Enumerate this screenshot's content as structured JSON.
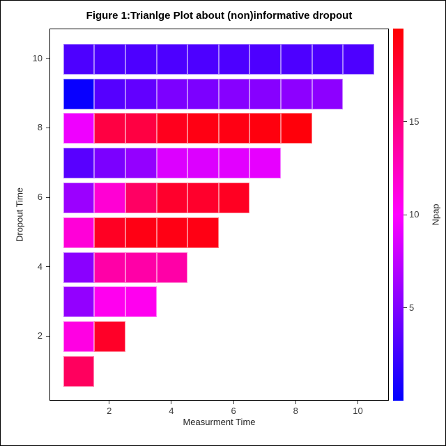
{
  "window": {
    "background": "#FFFFFF",
    "border_color": "#000000"
  },
  "chart_data": {
    "type": "heatmap",
    "title": "Figure 1:Trianlge Plot about (non)informative dropout",
    "xlabel": "Measurment Time",
    "ylabel": "Dropout Time",
    "x_ticks": [
      2,
      4,
      6,
      8,
      10
    ],
    "y_ticks": [
      2,
      4,
      6,
      8,
      10
    ],
    "xlim": [
      0.1,
      11.0
    ],
    "ylim": [
      -0.3,
      10.9
    ],
    "grid": false,
    "shape": "lower-triangle: row for dropout time d has cells at measurement times 1..d",
    "colorbar": {
      "label": "Npap",
      "min": 0,
      "max": 20,
      "ticks": [
        5,
        10,
        15
      ],
      "gradient_stops": [
        "#0000FF",
        "#FF00FF",
        "#FF0000"
      ],
      "position": "right"
    },
    "rows": [
      {
        "dropout_time": 1,
        "cells": [
          {
            "x": 1,
            "npap": 16.3,
            "color": "#FF005E"
          }
        ]
      },
      {
        "dropout_time": 2,
        "cells": [
          {
            "x": 1,
            "npap": 10.6,
            "color": "#FF00E3"
          },
          {
            "x": 2,
            "npap": 18.4,
            "color": "#FF0028"
          }
        ]
      },
      {
        "dropout_time": 3,
        "cells": [
          {
            "x": 1,
            "npap": 5.8,
            "color": "#9300FF"
          },
          {
            "x": 2,
            "npap": 10.4,
            "color": "#FF00EF"
          },
          {
            "x": 3,
            "npap": 10.4,
            "color": "#FF00EF"
          }
        ]
      },
      {
        "dropout_time": 4,
        "cells": [
          {
            "x": 1,
            "npap": 5.4,
            "color": "#8A00FF"
          },
          {
            "x": 2,
            "npap": 13.5,
            "color": "#FF00A7"
          },
          {
            "x": 3,
            "npap": 13.5,
            "color": "#FF00A7"
          },
          {
            "x": 4,
            "npap": 13.5,
            "color": "#FF00A7"
          }
        ]
      },
      {
        "dropout_time": 5,
        "cells": [
          {
            "x": 1,
            "npap": 11.0,
            "color": "#FF00D8"
          },
          {
            "x": 2,
            "npap": 18.6,
            "color": "#FF0023"
          },
          {
            "x": 3,
            "npap": 19.2,
            "color": "#FF0014"
          },
          {
            "x": 4,
            "npap": 19.2,
            "color": "#FF0014"
          },
          {
            "x": 5,
            "npap": 19.2,
            "color": "#FF0014"
          }
        ]
      },
      {
        "dropout_time": 6,
        "cells": [
          {
            "x": 1,
            "npap": 6.1,
            "color": "#9B00FF"
          },
          {
            "x": 2,
            "npap": 11.1,
            "color": "#FF00D4"
          },
          {
            "x": 3,
            "npap": 16.1,
            "color": "#FF0063"
          },
          {
            "x": 4,
            "npap": 18.3,
            "color": "#FF002C"
          },
          {
            "x": 5,
            "npap": 18.3,
            "color": "#FF002C"
          },
          {
            "x": 6,
            "npap": 18.7,
            "color": "#FF0022"
          }
        ]
      },
      {
        "dropout_time": 7,
        "cells": [
          {
            "x": 1,
            "npap": 3.5,
            "color": "#5800FF"
          },
          {
            "x": 2,
            "npap": 4.8,
            "color": "#7B00FF"
          },
          {
            "x": 3,
            "npap": 5.8,
            "color": "#9400FF"
          },
          {
            "x": 4,
            "npap": 8.6,
            "color": "#DC00FF"
          },
          {
            "x": 5,
            "npap": 8.6,
            "color": "#DC00FF"
          },
          {
            "x": 6,
            "npap": 8.9,
            "color": "#E200FF"
          },
          {
            "x": 7,
            "npap": 9.1,
            "color": "#E700FF"
          }
        ]
      },
      {
        "dropout_time": 8,
        "cells": [
          {
            "x": 1,
            "npap": 9.4,
            "color": "#EF00FF"
          },
          {
            "x": 2,
            "npap": 17.4,
            "color": "#FF0042"
          },
          {
            "x": 3,
            "npap": 17.4,
            "color": "#FF0042"
          },
          {
            "x": 4,
            "npap": 18.9,
            "color": "#FF001D"
          },
          {
            "x": 5,
            "npap": 19.3,
            "color": "#FF0013"
          },
          {
            "x": 6,
            "npap": 19.3,
            "color": "#FF0013"
          },
          {
            "x": 7,
            "npap": 19.5,
            "color": "#FF000E"
          },
          {
            "x": 8,
            "npap": 19.6,
            "color": "#FF000A"
          }
        ]
      },
      {
        "dropout_time": 9,
        "cells": [
          {
            "x": 1,
            "npap": 0.3,
            "color": "#0800FF"
          },
          {
            "x": 2,
            "npap": 3.3,
            "color": "#5500FF"
          },
          {
            "x": 3,
            "npap": 3.8,
            "color": "#6200FF"
          },
          {
            "x": 4,
            "npap": 4.9,
            "color": "#7C00FF"
          },
          {
            "x": 5,
            "npap": 4.9,
            "color": "#7C00FF"
          },
          {
            "x": 6,
            "npap": 5.3,
            "color": "#8700FF"
          },
          {
            "x": 7,
            "npap": 5.3,
            "color": "#8700FF"
          },
          {
            "x": 8,
            "npap": 5.5,
            "color": "#8D00FF"
          },
          {
            "x": 9,
            "npap": 5.5,
            "color": "#8D00FF"
          }
        ]
      },
      {
        "dropout_time": 10,
        "cells": [
          {
            "x": 1,
            "npap": 3.0,
            "color": "#4D00FF"
          },
          {
            "x": 2,
            "npap": 3.0,
            "color": "#4D00FF"
          },
          {
            "x": 3,
            "npap": 3.0,
            "color": "#4D00FF"
          },
          {
            "x": 4,
            "npap": 3.0,
            "color": "#4D00FF"
          },
          {
            "x": 5,
            "npap": 3.0,
            "color": "#4D00FF"
          },
          {
            "x": 6,
            "npap": 3.0,
            "color": "#4D00FF"
          },
          {
            "x": 7,
            "npap": 3.0,
            "color": "#4D00FF"
          },
          {
            "x": 8,
            "npap": 3.0,
            "color": "#4D00FF"
          },
          {
            "x": 9,
            "npap": 3.0,
            "color": "#4D00FF"
          },
          {
            "x": 10,
            "npap": 3.0,
            "color": "#4D00FF"
          }
        ]
      }
    ]
  }
}
